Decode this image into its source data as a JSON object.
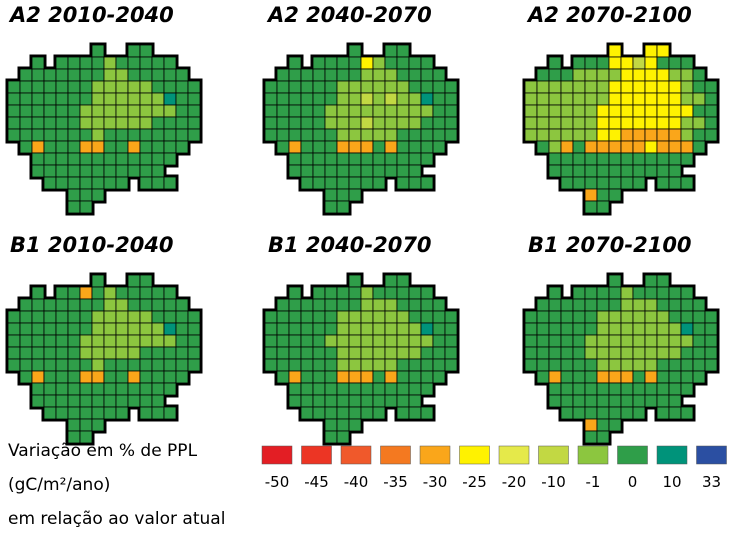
{
  "panels": [
    {
      "title": "A2 2010-2040",
      "rows": [
        "       9  99    ",
        "  9 9999899999  ",
        " 99999998899999 ",
        "9999999888889999",
        "9999999888888a99",
        "9999998888888899",
        "9999998888889999",
        "9999999899999999",
        " 94999449949999 ",
        "  999999999999  ",
        "  99999999999   ",
        "   9999999 999  ",
        "     999        ",
        "     99         "
      ]
    },
    {
      "title": "A2 2040-2070",
      "rows": [
        "       9  99    ",
        "  9 9999589999  ",
        " 99999998889999 ",
        "9999998888889999",
        "9999998878788a99",
        "9999988888888899",
        "9999988878888999",
        "9999998888899999",
        " 94999444949999 ",
        "  999999999999  ",
        "  99999999999   ",
        "   9999999 999  ",
        "     999        ",
        "     99         "
      ]
    },
    {
      "title": "A2 2070-2100",
      "rows": [
        "       5  55    ",
        "  9 9995575999  ",
        " 99988885555889 ",
        "8888888555555899",
        "8888888555555889",
        "8888885555555599",
        "8888885555555889",
        "8888885544444899",
        " 98494444454449 ",
        "  999999999999  ",
        "  99999999999   ",
        "   9999999 999  ",
        "     499        ",
        "     99         "
      ]
    },
    {
      "title": "B1 2010-2040",
      "rows": [
        "       9  99    ",
        "  9 9949899999  ",
        " 99999998899999 ",
        "9999999888889999",
        "9999999888888a99",
        "9999998888888899",
        "9999998888899999",
        "9999999899999999",
        " 94999449949999 ",
        "  999999999999  ",
        "  99999999999   ",
        "   9999999 999  ",
        "     999        ",
        "     99         "
      ]
    },
    {
      "title": "B1 2040-2070",
      "rows": [
        "       9  99    ",
        "  9 9999899999  ",
        " 99999998889999 ",
        "9999998888889999",
        "9999998888888a99",
        "9999988888888899",
        "9999998888888999",
        "9999998888899999",
        " 94999444949999 ",
        "  999999999999  ",
        "  99999999999   ",
        "   9999999 999  ",
        "     999        ",
        "     99         "
      ]
    },
    {
      "title": "B1 2070-2100",
      "rows": [
        "       9  99    ",
        "  9 9999899999  ",
        " 99999998889999 ",
        "9999998888889999",
        "9999998888888a99",
        "9999988888888899",
        "9999988888888999",
        "9999998888899999",
        " 94999444949999 ",
        "  999999999999  ",
        "  99999999999   ",
        "   9999999 999  ",
        "     499        ",
        "     99         "
      ]
    }
  ],
  "legend": {
    "lines": [
      "Variação em % de PPL",
      "(gC/m²/ano)",
      "em relação ao valor atual"
    ],
    "items": [
      {
        "label": -50,
        "color": "#e31e24"
      },
      {
        "label": -45,
        "color": "#ec3524"
      },
      {
        "label": -40,
        "color": "#f0592b"
      },
      {
        "label": -35,
        "color": "#f47920"
      },
      {
        "label": -30,
        "color": "#faa61a"
      },
      {
        "label": -25,
        "color": "#fff200"
      },
      {
        "label": -20,
        "color": "#e5e94a"
      },
      {
        "label": -10,
        "color": "#c2d843"
      },
      {
        "label": -1,
        "color": "#8cc63f"
      },
      {
        "label": 0,
        "color": "#2f9e49"
      },
      {
        "label": 10,
        "color": "#00937a"
      },
      {
        "label": 33,
        "color": "#2b4fa2"
      }
    ]
  }
}
